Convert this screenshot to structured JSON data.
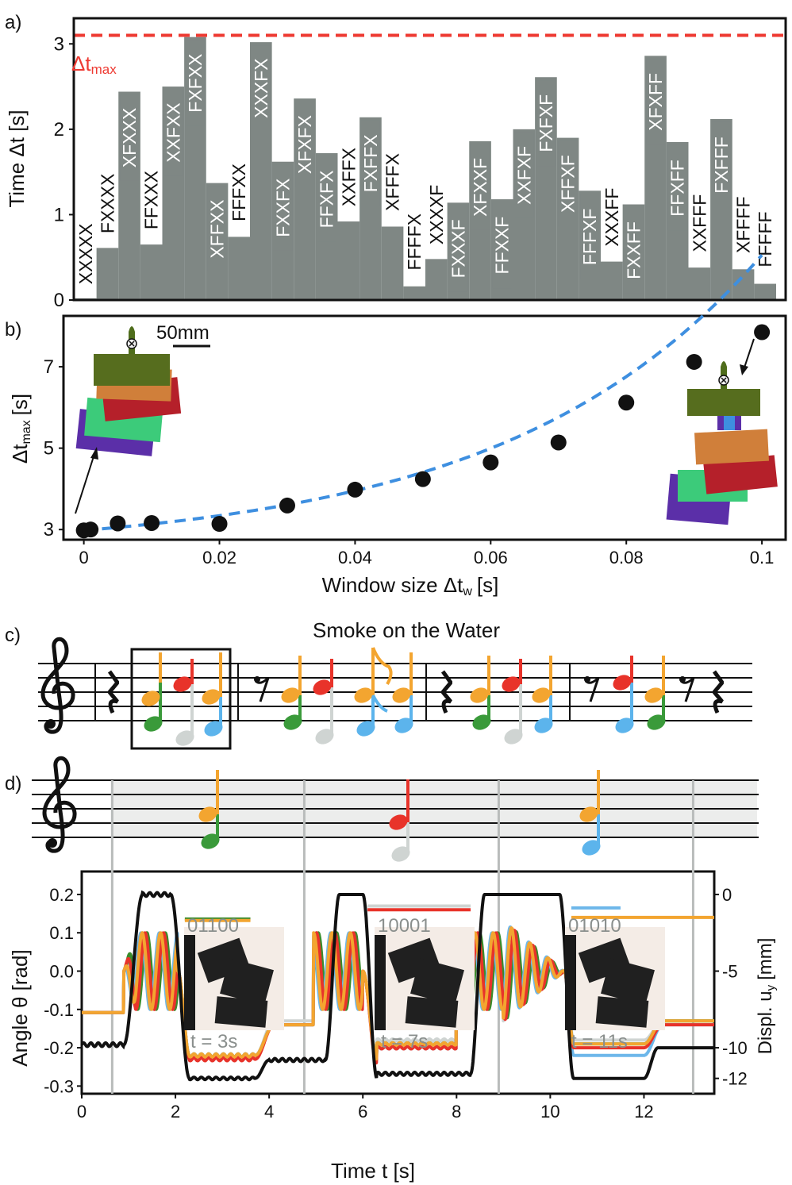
{
  "panel_labels": [
    "a)",
    "b)",
    "c)",
    "d)"
  ],
  "chart_data": [
    {
      "type": "bar",
      "panel": "a)",
      "ylabel": "Time Δt [s]",
      "ylim": [
        0,
        3.3
      ],
      "yticks": [
        "0",
        "1",
        "2",
        "3"
      ],
      "threshold": {
        "label_main": "Δt",
        "label_sub": "max",
        "value": 3.1,
        "color": "#ee3a32"
      },
      "bar_color": "#7f8784",
      "categories": [
        "XXXXX",
        "FXXXX",
        "XFXXX",
        "FFXXX",
        "XXFXX",
        "FXFXX",
        "XFFXX",
        "FFFXX",
        "XXXFX",
        "FXXFX",
        "XFXFX",
        "FFXFX",
        "XXFFX",
        "FXFFX",
        "XFFFX",
        "FFFFX",
        "XXXXF",
        "FXXXF",
        "XFXXF",
        "FFXXF",
        "XXFXF",
        "FXFXF",
        "XFFXF",
        "FFFXF",
        "XXXFF",
        "FXXFF",
        "XFXFF",
        "FFXFF",
        "XXFFF",
        "FXFFF",
        "XFFFF",
        "FFFFF"
      ],
      "values": [
        0.02,
        0.61,
        2.44,
        0.65,
        2.5,
        3.08,
        1.37,
        0.74,
        3.02,
        1.62,
        2.36,
        1.72,
        0.92,
        2.14,
        0.86,
        0.16,
        0.48,
        1.14,
        1.86,
        1.18,
        2.0,
        2.61,
        1.9,
        1.28,
        0.45,
        1.12,
        2.86,
        1.85,
        0.38,
        2.12,
        0.36,
        0.19
      ],
      "label_on_bar": [
        false,
        false,
        true,
        false,
        true,
        true,
        true,
        false,
        true,
        true,
        true,
        true,
        false,
        true,
        false,
        false,
        false,
        true,
        true,
        true,
        true,
        true,
        true,
        true,
        false,
        true,
        true,
        true,
        false,
        true,
        false,
        false
      ]
    },
    {
      "type": "scatter",
      "panel": "b)",
      "xlabel_main": "Window size Δt",
      "xlabel_sub": "w",
      "xlabel_unit": "[s]",
      "ylabel_main": "Δt",
      "ylabel_sub": "max",
      "ylabel_unit": "[s]",
      "xlim": [
        -0.003,
        0.1035
      ],
      "ylim": [
        2.75,
        8.25
      ],
      "xticks": [
        "0",
        "0.02",
        "0.04",
        "0.06",
        "0.08",
        "0.1"
      ],
      "yticks": [
        "3",
        "5",
        "7"
      ],
      "scale_bar": "50mm",
      "x": [
        0,
        0.001,
        0.005,
        0.01,
        0.02,
        0.03,
        0.04,
        0.05,
        0.06,
        0.07,
        0.08,
        0.09,
        0.1
      ],
      "y": [
        2.98,
        3.0,
        3.15,
        3.16,
        3.14,
        3.59,
        3.98,
        4.24,
        4.65,
        5.14,
        6.12,
        7.12,
        7.85
      ],
      "fit_color": "#3e8fe0",
      "point_color": "#111111"
    },
    {
      "type": "line",
      "panel": "d)",
      "xlabel": "Time t [s]",
      "ylabel_left": "Angle θ [rad]",
      "ylabel_right_main": "Displ. u",
      "ylabel_right_sub": "y",
      "ylabel_right_unit": "[mm]",
      "xlim": [
        0,
        13.5
      ],
      "ylim": [
        -0.32,
        0.26
      ],
      "xticks": [
        "0",
        "2",
        "4",
        "6",
        "8",
        "10",
        "12"
      ],
      "yticks_left": [
        "0.2",
        "0.1",
        "0.0",
        "-0.1",
        "-0.2",
        "-0.3"
      ],
      "yticks_right": [
        "0",
        "-5",
        "-10",
        "-12"
      ],
      "event_lines_t": [
        0.65,
        4.75,
        8.9,
        13.05
      ],
      "insets": [
        {
          "code": "01100",
          "time_label": "t = 3s"
        },
        {
          "code": "10001",
          "time_label": "t = 7s"
        },
        {
          "code": "01010",
          "time_label": "t = 11s"
        }
      ],
      "series_colors": [
        "#3a8c2c",
        "#e8332a",
        "#f3a530",
        "#6db7ea",
        "#cfd4d2",
        "#111111"
      ]
    }
  ],
  "music": {
    "title": "Smoke on the Water",
    "note_colors": {
      "green": "#3a9a3a",
      "red": "#e8332a",
      "orange": "#f3a530",
      "blue": "#5cb4ec",
      "gray": "#cfd4d2"
    }
  }
}
